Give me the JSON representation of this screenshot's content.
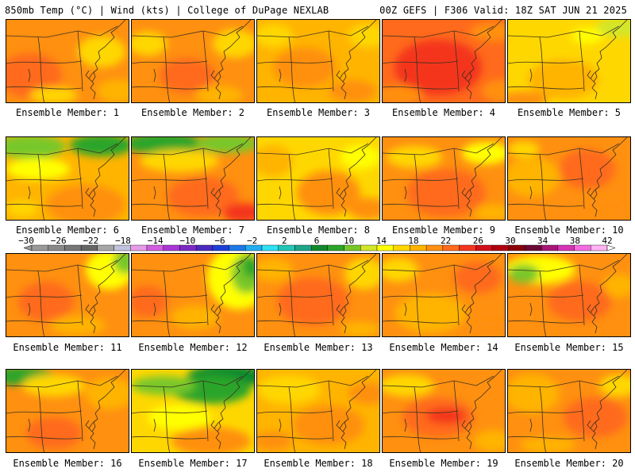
{
  "header": {
    "left": "850mb Temp (°C) | Wind (kts) | College of DuPage NEXLAB",
    "right": "00Z GEFS | F306 Valid: 18Z SAT JUN 21 2025"
  },
  "colorbar": {
    "tick_labels": [
      "-30",
      "-26",
      "-22",
      "-18",
      "-14",
      "-10",
      "-6",
      "-2",
      "2",
      "6",
      "10",
      "14",
      "18",
      "22",
      "26",
      "30",
      "34",
      "38",
      "42"
    ],
    "colors": [
      "#9a9a9a",
      "#8a8a8a",
      "#777777",
      "#666666",
      "#a7a7a7",
      "#c2c2dc",
      "#e59ce6",
      "#d25ee0",
      "#a937d4",
      "#7d2ac5",
      "#4b2abf",
      "#1e3fd8",
      "#1f79e6",
      "#22aef0",
      "#2fe0f3",
      "#23c6b4",
      "#1fa58a",
      "#118a2d",
      "#2ca52a",
      "#78c72a",
      "#d2e62a",
      "#ffff00",
      "#ffd700",
      "#ffb400",
      "#ff9010",
      "#ff6a1c",
      "#f4351f",
      "#d0101a",
      "#b00010",
      "#8a0008",
      "#6b0a35",
      "#a81678",
      "#d634b5",
      "#f56be1",
      "#ffb3f2"
    ]
  },
  "panels": [
    {
      "label": "Ensemble Member: 1"
    },
    {
      "label": "Ensemble Member: 2"
    },
    {
      "label": "Ensemble Member: 3"
    },
    {
      "label": "Ensemble Member: 4"
    },
    {
      "label": "Ensemble Member: 5"
    },
    {
      "label": "Ensemble Member: 6"
    },
    {
      "label": "Ensemble Member: 7"
    },
    {
      "label": "Ensemble Member: 8"
    },
    {
      "label": "Ensemble Member: 9"
    },
    {
      "label": "Ensemble Member: 10"
    },
    {
      "label": "Ensemble Member: 11"
    },
    {
      "label": "Ensemble Member: 12"
    },
    {
      "label": "Ensemble Member: 13"
    },
    {
      "label": "Ensemble Member: 14"
    },
    {
      "label": "Ensemble Member: 15"
    },
    {
      "label": "Ensemble Member: 16"
    },
    {
      "label": "Ensemble Member: 17"
    },
    {
      "label": "Ensemble Member: 18"
    },
    {
      "label": "Ensemble Member: 19"
    },
    {
      "label": "Ensemble Member: 20"
    }
  ],
  "field_colors": {
    "green_dark": "#118a2d",
    "green": "#2ca52a",
    "green_light": "#78c72a",
    "yellow_green": "#d2e62a",
    "yellow": "#ffff00",
    "gold": "#ffd700",
    "orange_light": "#ffb400",
    "orange": "#ff9010",
    "orange_dark": "#ff6a1c",
    "red": "#f4351f"
  }
}
